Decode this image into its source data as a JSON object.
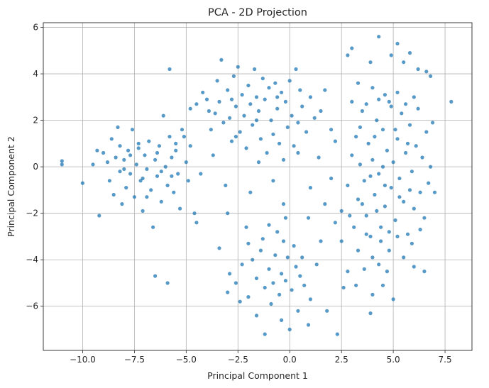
{
  "chart_data": {
    "type": "scatter",
    "title": "PCA - 2D Projection",
    "xlabel": "Principal Component 1",
    "ylabel": "Principal Component 2",
    "xlim": [
      -11.9,
      8.8
    ],
    "ylim": [
      -7.9,
      6.2
    ],
    "xticks": [
      -10.0,
      -7.5,
      -5.0,
      -2.5,
      0.0,
      2.5,
      5.0,
      7.5
    ],
    "yticks": [
      -6,
      -4,
      -2,
      0,
      2,
      4,
      6
    ],
    "grid": true,
    "legend": "none",
    "point_color": "#1f77b4",
    "series": [
      {
        "points": [
          [
            -11.0,
            0.25
          ],
          [
            -11.0,
            0.1
          ],
          [
            -10.0,
            -0.7
          ],
          [
            -9.5,
            0.1
          ],
          [
            -9.3,
            0.7
          ],
          [
            -9.2,
            -2.1
          ],
          [
            -9.0,
            0.6
          ],
          [
            -8.8,
            0.2
          ],
          [
            -8.7,
            -0.6
          ],
          [
            -8.6,
            1.2
          ],
          [
            -8.5,
            -1.2
          ],
          [
            -8.4,
            0.4
          ],
          [
            -8.3,
            1.7
          ],
          [
            -8.2,
            -0.2
          ],
          [
            -8.2,
            0.9
          ],
          [
            -8.1,
            -1.6
          ],
          [
            -8.0,
            0.3
          ],
          [
            -7.9,
            -0.9
          ],
          [
            -7.8,
            0.7
          ],
          [
            -7.7,
            -0.3
          ],
          [
            -7.6,
            1.6
          ],
          [
            -7.5,
            -1.3
          ],
          [
            -7.4,
            0.1
          ],
          [
            -7.3,
            0.8
          ],
          [
            -7.2,
            -0.6
          ],
          [
            -7.1,
            -1.9
          ],
          [
            -7.0,
            0.5
          ],
          [
            -6.9,
            -0.1
          ],
          [
            -6.8,
            1.1
          ],
          [
            -6.7,
            -1.0
          ],
          [
            -6.6,
            -2.6
          ],
          [
            -6.5,
            0.3
          ],
          [
            -6.4,
            -0.4
          ],
          [
            -6.3,
            0.9
          ],
          [
            -6.2,
            -1.5
          ],
          [
            -6.1,
            2.2
          ],
          [
            -6.0,
            0.0
          ],
          [
            -5.9,
            -0.8
          ],
          [
            -5.8,
            1.3
          ],
          [
            -5.7,
            0.4
          ],
          [
            -5.6,
            -1.1
          ],
          [
            -5.5,
            0.7
          ],
          [
            -5.4,
            -0.3
          ],
          [
            -5.3,
            -1.8
          ],
          [
            -5.2,
            1.6
          ],
          [
            -5.0,
            0.2
          ],
          [
            -4.9,
            -0.6
          ],
          [
            -4.8,
            0.9
          ],
          [
            -4.6,
            -2.0
          ],
          [
            -4.5,
            -2.4
          ],
          [
            -6.5,
            -4.7
          ],
          [
            -5.9,
            -5.0
          ],
          [
            -5.8,
            4.2
          ],
          [
            -7.3,
            1.0
          ],
          [
            -6.9,
            -1.3
          ],
          [
            -8.0,
            -0.1
          ],
          [
            -7.7,
            0.5
          ],
          [
            -7.1,
            -0.5
          ],
          [
            -6.4,
            0.6
          ],
          [
            -6.2,
            -0.2
          ],
          [
            -5.7,
            -0.4
          ],
          [
            -5.5,
            1.0
          ],
          [
            -5.1,
            1.3
          ],
          [
            -4.8,
            2.5
          ],
          [
            -4.5,
            2.7
          ],
          [
            -4.2,
            3.2
          ],
          [
            -4.0,
            2.9
          ],
          [
            -3.8,
            1.6
          ],
          [
            -3.6,
            2.3
          ],
          [
            -3.5,
            3.7
          ],
          [
            -3.4,
            2.8
          ],
          [
            -3.3,
            4.6
          ],
          [
            -3.2,
            1.9
          ],
          [
            -3.0,
            3.3
          ],
          [
            -2.9,
            2.1
          ],
          [
            -2.8,
            1.1
          ],
          [
            -2.7,
            3.9
          ],
          [
            -2.6,
            2.6
          ],
          [
            -2.5,
            4.3
          ],
          [
            -2.4,
            1.5
          ],
          [
            -2.3,
            3.1
          ],
          [
            -2.2,
            2.2
          ],
          [
            -2.1,
            0.8
          ],
          [
            -2.0,
            3.5
          ],
          [
            -1.9,
            2.7
          ],
          [
            -1.8,
            1.8
          ],
          [
            -1.7,
            4.2
          ],
          [
            -1.6,
            3.0
          ],
          [
            -1.5,
            2.4
          ],
          [
            -1.4,
            1.2
          ],
          [
            -1.3,
            3.8
          ],
          [
            -1.2,
            2.9
          ],
          [
            -1.1,
            0.6
          ],
          [
            -1.0,
            3.4
          ],
          [
            -0.9,
            2.0
          ],
          [
            -0.8,
            1.4
          ],
          [
            -0.7,
            3.6
          ],
          [
            -0.6,
            2.5
          ],
          [
            -0.5,
            1.0
          ],
          [
            -0.4,
            3.2
          ],
          [
            -0.3,
            0.3
          ],
          [
            -0.2,
            2.8
          ],
          [
            -0.1,
            1.7
          ],
          [
            0.0,
            3.7
          ],
          [
            0.1,
            2.2
          ],
          [
            0.2,
            0.9
          ],
          [
            0.3,
            4.2
          ],
          [
            0.4,
            1.9
          ],
          [
            0.6,
            2.6
          ],
          [
            0.8,
            1.5
          ],
          [
            1.0,
            3.0
          ],
          [
            1.2,
            2.1
          ],
          [
            1.5,
            2.4
          ],
          [
            1.7,
            3.3
          ],
          [
            2.0,
            1.6
          ],
          [
            -3.9,
            2.4
          ],
          [
            -2.8,
            2.9
          ],
          [
            -1.6,
            2.0
          ],
          [
            -0.6,
            3.0
          ],
          [
            0.5,
            3.3
          ],
          [
            -4.3,
            -0.3
          ],
          [
            -3.7,
            0.5
          ],
          [
            -3.1,
            -0.8
          ],
          [
            -2.6,
            1.3
          ],
          [
            -1.9,
            -1.1
          ],
          [
            -1.5,
            0.2
          ],
          [
            -0.8,
            -0.6
          ],
          [
            -0.3,
            -1.6
          ],
          [
            0.4,
            0.6
          ],
          [
            1.0,
            -0.9
          ],
          [
            1.4,
            0.4
          ],
          [
            2.0,
            -0.5
          ],
          [
            2.2,
            1.1
          ],
          [
            1.7,
            -1.6
          ],
          [
            0.9,
            -2.2
          ],
          [
            -3.0,
            -2.0
          ],
          [
            -2.1,
            -2.6
          ],
          [
            -1.3,
            -3.1
          ],
          [
            -0.6,
            -2.8
          ],
          [
            0.2,
            -3.4
          ],
          [
            -2.0,
            -3.3
          ],
          [
            -1.8,
            -4.0
          ],
          [
            -1.4,
            -3.6
          ],
          [
            -1.0,
            -4.4
          ],
          [
            -0.7,
            -3.8
          ],
          [
            -0.4,
            -4.6
          ],
          [
            -0.1,
            -3.9
          ],
          [
            0.3,
            -4.3
          ],
          [
            -2.3,
            -4.2
          ],
          [
            -1.6,
            -4.8
          ],
          [
            -1.2,
            -5.2
          ],
          [
            -0.8,
            -5.0
          ],
          [
            -0.5,
            -5.5
          ],
          [
            -0.2,
            -4.9
          ],
          [
            0.1,
            -5.3
          ],
          [
            0.5,
            -4.7
          ],
          [
            -2.6,
            -5.0
          ],
          [
            -2.0,
            -5.6
          ],
          [
            -1.6,
            -6.4
          ],
          [
            -1.2,
            -7.2
          ],
          [
            -0.9,
            -5.9
          ],
          [
            -0.4,
            -6.6
          ],
          [
            0.0,
            -7.0
          ],
          [
            0.4,
            -6.2
          ],
          [
            0.7,
            -5.1
          ],
          [
            -3.4,
            -3.5
          ],
          [
            -2.9,
            -4.6
          ],
          [
            -3.0,
            -5.4
          ],
          [
            -2.4,
            -5.8
          ],
          [
            1.0,
            -5.7
          ],
          [
            1.3,
            -4.2
          ],
          [
            1.8,
            -6.2
          ],
          [
            2.3,
            -7.2
          ],
          [
            0.9,
            -6.8
          ],
          [
            -0.3,
            -3.2
          ],
          [
            -1.0,
            -2.5
          ],
          [
            -0.2,
            -2.2
          ],
          [
            0.6,
            -3.9
          ],
          [
            1.5,
            -3.2
          ],
          [
            2.2,
            -2.4
          ],
          [
            2.5,
            -1.9
          ],
          [
            2.8,
            -0.8
          ],
          [
            3.0,
            0.5
          ],
          [
            3.1,
            -2.6
          ],
          [
            3.2,
            1.3
          ],
          [
            3.3,
            -1.4
          ],
          [
            3.4,
            0.1
          ],
          [
            3.5,
            2.4
          ],
          [
            3.6,
            -0.6
          ],
          [
            3.7,
            -2.1
          ],
          [
            3.8,
            1.0
          ],
          [
            3.9,
            -3.0
          ],
          [
            4.0,
            0.3
          ],
          [
            4.1,
            -1.2
          ],
          [
            4.2,
            2.0
          ],
          [
            4.3,
            -0.3
          ],
          [
            4.4,
            -2.6
          ],
          [
            4.5,
            1.6
          ],
          [
            4.6,
            -1.7
          ],
          [
            4.7,
            0.7
          ],
          [
            4.8,
            2.8
          ],
          [
            4.9,
            -0.9
          ],
          [
            5.0,
            0.2
          ],
          [
            5.1,
            -2.3
          ],
          [
            5.2,
            1.2
          ],
          [
            5.3,
            -0.5
          ],
          [
            5.4,
            2.3
          ],
          [
            5.5,
            -1.5
          ],
          [
            5.6,
            0.6
          ],
          [
            5.7,
            -2.9
          ],
          [
            5.8,
            1.8
          ],
          [
            5.9,
            -0.2
          ],
          [
            6.0,
            -1.8
          ],
          [
            6.1,
            0.9
          ],
          [
            6.2,
            2.5
          ],
          [
            6.3,
            -1.1
          ],
          [
            6.4,
            0.4
          ],
          [
            6.5,
            -2.2
          ],
          [
            6.6,
            1.5
          ],
          [
            6.7,
            -0.7
          ],
          [
            6.8,
            0.0
          ],
          [
            6.9,
            1.9
          ],
          [
            7.0,
            -1.1
          ],
          [
            7.8,
            2.8
          ],
          [
            6.8,
            3.9
          ],
          [
            3.0,
            2.8
          ],
          [
            3.3,
            3.6
          ],
          [
            3.7,
            2.7
          ],
          [
            4.0,
            3.4
          ],
          [
            4.3,
            2.9
          ],
          [
            4.6,
            3.1
          ],
          [
            4.9,
            2.6
          ],
          [
            5.2,
            3.2
          ],
          [
            5.6,
            2.7
          ],
          [
            6.0,
            3.0
          ],
          [
            2.8,
            4.8
          ],
          [
            3.0,
            5.1
          ],
          [
            3.9,
            4.5
          ],
          [
            4.3,
            5.6
          ],
          [
            4.9,
            4.8
          ],
          [
            5.2,
            5.3
          ],
          [
            5.8,
            4.9
          ],
          [
            6.2,
            4.2
          ],
          [
            6.6,
            4.1
          ],
          [
            5.5,
            4.5
          ],
          [
            2.5,
            -3.2
          ],
          [
            2.9,
            -2.1
          ],
          [
            3.3,
            -3.6
          ],
          [
            3.7,
            -2.9
          ],
          [
            4.0,
            -3.9
          ],
          [
            4.4,
            -3.2
          ],
          [
            4.8,
            -3.6
          ],
          [
            5.2,
            -3.0
          ],
          [
            5.5,
            -3.9
          ],
          [
            5.9,
            -3.3
          ],
          [
            6.3,
            -2.7
          ],
          [
            6.0,
            -4.3
          ],
          [
            4.7,
            -4.5
          ],
          [
            4.3,
            -4.2
          ],
          [
            3.6,
            -4.4
          ],
          [
            2.8,
            -4.5
          ],
          [
            3.2,
            -5.1
          ],
          [
            4.0,
            -5.5
          ],
          [
            3.9,
            -6.3
          ],
          [
            4.5,
            -5.1
          ],
          [
            5.0,
            -5.7
          ],
          [
            2.6,
            -5.2
          ],
          [
            6.5,
            -4.5
          ],
          [
            3.5,
            -1.6
          ],
          [
            4.2,
            -1.9
          ],
          [
            4.8,
            -2.8
          ],
          [
            5.3,
            -1.3
          ],
          [
            5.8,
            -1.0
          ],
          [
            4.5,
            0.0
          ],
          [
            3.9,
            -0.4
          ],
          [
            4.6,
            -0.8
          ],
          [
            5.1,
            1.6
          ],
          [
            4.1,
            1.3
          ],
          [
            3.4,
            1.7
          ],
          [
            5.7,
            1.0
          ]
        ]
      }
    ]
  }
}
